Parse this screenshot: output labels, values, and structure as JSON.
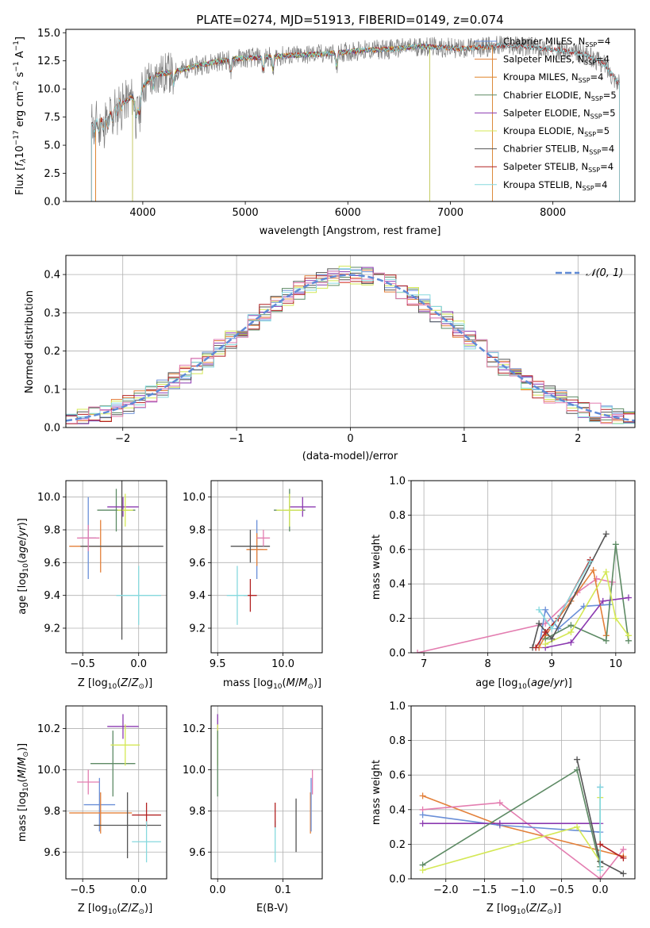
{
  "figure_title": "PLATE=0274, MJD=51913, FIBERID=0149, z=0.074",
  "colors": {
    "chabrier_miles": "#6a8fd8",
    "salpeter_miles": "#e3803a",
    "kroupa_miles": "#e0862b",
    "chabrier_elodie": "#5d8a64",
    "salpeter_elodie": "#8b39b0",
    "kroupa_elodie": "#d4e855",
    "chabrier_stelib": "#555555",
    "salpeter_stelib": "#b22222",
    "kroupa_stelib": "#86d9de",
    "pink": "#e37db0",
    "gauss": "#5f8ad6",
    "data": "#808080"
  },
  "chart_data": [
    {
      "id": "spectrum",
      "type": "line",
      "xlabel": "wavelength [Angstrom, rest frame]",
      "ylabel": "Flux [f$_\\lambda$10$^{-17}$ erg cm$^{-2}$ s$^{-1}$ A$^{-1}$]",
      "xlim": [
        3250,
        8800
      ],
      "ylim": [
        0,
        15.3
      ],
      "xticks": [
        4000,
        5000,
        6000,
        7000,
        8000
      ],
      "yticks": [
        0.0,
        2.5,
        5.0,
        7.5,
        10.0,
        12.5,
        15.0
      ],
      "ytick_labels": [
        "0.0",
        "2.5",
        "5.0",
        "7.5",
        "10.0",
        "12.5",
        "15.0"
      ],
      "grid": false,
      "legend_position": "top-right",
      "legend": [
        {
          "label": "Chabrier MILES, N",
          "sub": "SSP",
          "tail": "=4",
          "color": "chabrier_miles"
        },
        {
          "label": "Salpeter MILES, N",
          "sub": "SSP",
          "tail": "=4",
          "color": "salpeter_miles"
        },
        {
          "label": "Kroupa MILES, N",
          "sub": "SSP",
          "tail": "=4",
          "color": "kroupa_miles"
        },
        {
          "label": "Chabrier ELODIE, N",
          "sub": "SSP",
          "tail": "=5",
          "color": "chabrier_elodie"
        },
        {
          "label": "Salpeter ELODIE, N",
          "sub": "SSP",
          "tail": "=5",
          "color": "salpeter_elodie"
        },
        {
          "label": "Kroupa ELODIE, N",
          "sub": "SSP",
          "tail": "=5",
          "color": "kroupa_elodie"
        },
        {
          "label": "Chabrier STELIB, N",
          "sub": "SSP",
          "tail": "=4",
          "color": "chabrier_stelib"
        },
        {
          "label": "Salpeter STELIB, N",
          "sub": "SSP",
          "tail": "=4",
          "color": "salpeter_stelib"
        },
        {
          "label": "Kroupa STELIB, N",
          "sub": "SSP",
          "tail": "=4",
          "color": "kroupa_stelib"
        }
      ],
      "continuum": [
        [
          3500,
          6.6
        ],
        [
          3650,
          6.9
        ],
        [
          3780,
          8.6
        ],
        [
          3900,
          9.3
        ],
        [
          3950,
          8.3
        ],
        [
          4000,
          10.2
        ],
        [
          4100,
          11.2
        ],
        [
          4300,
          11.5
        ],
        [
          4500,
          12.0
        ],
        [
          4700,
          12.4
        ],
        [
          4900,
          12.7
        ],
        [
          5100,
          12.8
        ],
        [
          5300,
          12.9
        ],
        [
          5500,
          13.0
        ],
        [
          5700,
          13.1
        ],
        [
          5900,
          13.2
        ],
        [
          6100,
          13.4
        ],
        [
          6300,
          13.5
        ],
        [
          6500,
          13.6
        ],
        [
          6700,
          13.8
        ],
        [
          6900,
          13.7
        ],
        [
          7100,
          13.6
        ],
        [
          7300,
          13.7
        ],
        [
          7500,
          13.9
        ],
        [
          7700,
          13.8
        ],
        [
          7900,
          13.6
        ],
        [
          8100,
          13.4
        ],
        [
          8300,
          13.1
        ],
        [
          8500,
          12.2
        ],
        [
          8650,
          10.4
        ]
      ]
    },
    {
      "id": "residuals",
      "type": "histogram",
      "xlabel": "(data-model)/error",
      "ylabel": "Normed distribution",
      "xlim": [
        -2.5,
        2.5
      ],
      "ylim": [
        0,
        0.45
      ],
      "xticks": [
        -2,
        -1,
        0,
        1,
        2
      ],
      "xtick_labels": [
        "−2",
        "−1",
        "0",
        "1",
        "2"
      ],
      "yticks": [
        0.0,
        0.1,
        0.2,
        0.3,
        0.4
      ],
      "ytick_labels": [
        "0.0",
        "0.1",
        "0.2",
        "0.3",
        "0.4"
      ],
      "grid": true,
      "legend_position": "top-right",
      "legend": [
        {
          "label": "𝒩(0, 1)",
          "color": "gauss"
        }
      ],
      "bin_edges_start": -2.5,
      "bin_width": 0.1
    },
    {
      "id": "age_vs_Z",
      "type": "scatter",
      "xlabel": "Z [log₁₀(Z/Z☉)]",
      "ylabel": "age  [log₁₀(age/yr)]",
      "xlim": [
        -0.65,
        0.25
      ],
      "ylim": [
        9.05,
        10.1
      ],
      "xticks": [
        -0.5,
        0.0
      ],
      "xtick_labels": [
        "−0.5",
        "0.0"
      ],
      "yticks": [
        9.2,
        9.4,
        9.6,
        9.8,
        10.0
      ],
      "ytick_labels": [
        "9.2",
        "9.4",
        "9.6",
        "9.8",
        "10.0"
      ],
      "grid": true,
      "points": [
        {
          "x": -0.45,
          "y": 9.75,
          "xerr": 0.07,
          "yerr": 0.25,
          "color": "chabrier_miles"
        },
        {
          "x": -0.34,
          "y": 9.7,
          "xerr": 0.28,
          "yerr": 0.16,
          "color": "salpeter_miles"
        },
        {
          "x": -0.2,
          "y": 9.92,
          "xerr": 0.17,
          "yerr": 0.13,
          "color": "chabrier_elodie"
        },
        {
          "x": -0.14,
          "y": 9.94,
          "xerr": 0.14,
          "yerr": 0.06,
          "color": "salpeter_elodie"
        },
        {
          "x": -0.12,
          "y": 9.92,
          "xerr": 0.07,
          "yerr": 0.1,
          "color": "kroupa_elodie"
        },
        {
          "x": -0.15,
          "y": 9.7,
          "xerr": 0.37,
          "yerr": 0.57,
          "color": "chabrier_stelib"
        },
        {
          "x": -0.45,
          "y": 9.75,
          "xerr": 0.1,
          "yerr": 0.08,
          "color": "pink"
        },
        {
          "x": 0.0,
          "y": 9.4,
          "xerr": 0.2,
          "yerr": 0.18,
          "color": "kroupa_stelib"
        }
      ]
    },
    {
      "id": "age_vs_mass",
      "type": "scatter",
      "xlabel": "mass [log₁₀(M/M☉)]",
      "xlim": [
        9.45,
        10.3
      ],
      "ylim": [
        9.05,
        10.1
      ],
      "xticks": [
        9.5,
        10.0
      ],
      "xtick_labels": [
        "9.5",
        "10.0"
      ],
      "yticks": [
        9.2,
        9.4,
        9.6,
        9.8,
        10.0
      ],
      "ytick_labels": [
        "9.2",
        "9.4",
        "9.6",
        "9.8",
        "10.0"
      ],
      "grid": true,
      "points": [
        {
          "x": 9.8,
          "y": 9.68,
          "xerr": 0.05,
          "yerr": 0.18,
          "color": "chabrier_miles"
        },
        {
          "x": 9.8,
          "y": 9.68,
          "xerr": 0.08,
          "yerr": 0.1,
          "color": "salpeter_miles"
        },
        {
          "x": 10.05,
          "y": 9.92,
          "xerr": 0.12,
          "yerr": 0.13,
          "color": "chabrier_elodie"
        },
        {
          "x": 10.15,
          "y": 9.94,
          "xerr": 0.1,
          "yerr": 0.06,
          "color": "salpeter_elodie"
        },
        {
          "x": 10.05,
          "y": 9.92,
          "xerr": 0.1,
          "yerr": 0.1,
          "color": "kroupa_elodie"
        },
        {
          "x": 9.75,
          "y": 9.7,
          "xerr": 0.15,
          "yerr": 0.1,
          "color": "chabrier_stelib"
        },
        {
          "x": 9.75,
          "y": 9.4,
          "xerr": 0.05,
          "yerr": 0.1,
          "color": "salpeter_stelib"
        },
        {
          "x": 9.65,
          "y": 9.4,
          "xerr": 0.08,
          "yerr": 0.18,
          "color": "kroupa_stelib"
        },
        {
          "x": 9.85,
          "y": 9.75,
          "xerr": 0.05,
          "yerr": 0.05,
          "color": "pink"
        }
      ]
    },
    {
      "id": "massweight_vs_age",
      "type": "line",
      "xlabel": "age  [log₁₀(age/yr)]",
      "ylabel": "mass weight",
      "xlim": [
        6.8,
        10.3
      ],
      "ylim": [
        0,
        1.0
      ],
      "xticks": [
        7,
        8,
        9,
        10
      ],
      "xtick_labels": [
        "7",
        "8",
        "9",
        "10"
      ],
      "yticks": [
        0.0,
        0.2,
        0.4,
        0.6,
        0.8,
        1.0
      ],
      "ytick_labels": [
        "0.0",
        "0.2",
        "0.4",
        "0.6",
        "0.8",
        "1.0"
      ],
      "grid": true,
      "series": [
        {
          "color": "pink",
          "x": [
            6.9,
            8.9,
            9.4,
            9.7,
            9.95
          ],
          "y": [
            0.0,
            0.17,
            0.35,
            0.43,
            0.41
          ]
        },
        {
          "color": "chabrier_miles",
          "x": [
            8.8,
            8.9,
            9.1,
            9.5,
            9.9
          ],
          "y": [
            0.03,
            0.25,
            0.14,
            0.27,
            0.28
          ]
        },
        {
          "color": "salpeter_miles",
          "x": [
            8.8,
            8.9,
            9.3,
            9.65,
            9.85
          ],
          "y": [
            0.03,
            0.1,
            0.3,
            0.48,
            0.1
          ]
        },
        {
          "color": "chabrier_elodie",
          "x": [
            8.9,
            9.3,
            9.85,
            10.0,
            10.2
          ],
          "y": [
            0.08,
            0.16,
            0.07,
            0.63,
            0.07
          ]
        },
        {
          "color": "salpeter_elodie",
          "x": [
            8.9,
            9.3,
            9.8,
            10.2
          ],
          "y": [
            0.03,
            0.06,
            0.3,
            0.32
          ]
        },
        {
          "color": "kroupa_elodie",
          "x": [
            8.9,
            9.3,
            9.85,
            10.0,
            10.2
          ],
          "y": [
            0.05,
            0.12,
            0.47,
            0.2,
            0.1
          ]
        },
        {
          "color": "chabrier_stelib",
          "x": [
            8.7,
            8.8,
            9.0,
            9.85
          ],
          "y": [
            0.03,
            0.17,
            0.08,
            0.69
          ]
        },
        {
          "color": "salpeter_stelib",
          "x": [
            8.75,
            8.9,
            9.1,
            9.6
          ],
          "y": [
            0.03,
            0.12,
            0.2,
            0.54
          ]
        },
        {
          "color": "kroupa_stelib",
          "x": [
            8.8,
            9.0,
            9.6
          ],
          "y": [
            0.25,
            0.14,
            0.53
          ]
        }
      ]
    },
    {
      "id": "mass_vs_Z",
      "type": "scatter",
      "xlabel": "Z [log₁₀(Z/Z☉)]",
      "ylabel": "mass [log₁₀(M/M☉)]",
      "xlim": [
        -0.65,
        0.25
      ],
      "ylim": [
        9.47,
        10.31
      ],
      "xticks": [
        -0.5,
        0.0
      ],
      "xtick_labels": [
        "−0.5",
        "0.0"
      ],
      "yticks": [
        9.6,
        9.8,
        10.0,
        10.2
      ],
      "ytick_labels": [
        "9.6",
        "9.8",
        "10.0",
        "10.2"
      ],
      "grid": true,
      "points": [
        {
          "x": -0.35,
          "y": 9.83,
          "xerr": 0.14,
          "yerr": 0.13,
          "color": "chabrier_miles"
        },
        {
          "x": -0.34,
          "y": 9.79,
          "xerr": 0.28,
          "yerr": 0.1,
          "color": "salpeter_miles"
        },
        {
          "x": -0.23,
          "y": 10.03,
          "xerr": 0.2,
          "yerr": 0.16,
          "color": "chabrier_elodie"
        },
        {
          "x": -0.14,
          "y": 10.21,
          "xerr": 0.14,
          "yerr": 0.06,
          "color": "salpeter_elodie"
        },
        {
          "x": -0.12,
          "y": 10.12,
          "xerr": 0.13,
          "yerr": 0.1,
          "color": "kroupa_elodie"
        },
        {
          "x": -0.1,
          "y": 9.73,
          "xerr": 0.3,
          "yerr": 0.16,
          "color": "chabrier_stelib"
        },
        {
          "x": 0.07,
          "y": 9.78,
          "xerr": 0.13,
          "yerr": 0.06,
          "color": "salpeter_stelib"
        },
        {
          "x": 0.07,
          "y": 9.65,
          "xerr": 0.13,
          "yerr": 0.1,
          "color": "kroupa_stelib"
        },
        {
          "x": -0.45,
          "y": 9.94,
          "xerr": 0.1,
          "yerr": 0.06,
          "color": "pink"
        }
      ]
    },
    {
      "id": "mass_vs_ebv",
      "type": "scatter",
      "xlabel": "E(B-V)",
      "xlim": [
        -0.01,
        0.16
      ],
      "ylim": [
        9.47,
        10.31
      ],
      "xticks": [
        0.0,
        0.1
      ],
      "xtick_labels": [
        "0.0",
        "0.1"
      ],
      "yticks": [
        9.6,
        9.8,
        10.0,
        10.2
      ],
      "ytick_labels": [
        "9.6",
        "9.8",
        "10.0",
        "10.2"
      ],
      "grid": true,
      "points": [
        {
          "x": 0.0,
          "y": 10.21,
          "xerr": 0,
          "yerr": 0.06,
          "color": "salpeter_elodie"
        },
        {
          "x": 0.0,
          "y": 10.12,
          "xerr": 0,
          "yerr": 0.1,
          "color": "kroupa_elodie"
        },
        {
          "x": 0.0,
          "y": 10.03,
          "xerr": 0,
          "yerr": 0.16,
          "color": "chabrier_elodie"
        },
        {
          "x": 0.088,
          "y": 9.65,
          "xerr": 0,
          "yerr": 0.1,
          "color": "kroupa_stelib"
        },
        {
          "x": 0.088,
          "y": 9.78,
          "xerr": 0,
          "yerr": 0.06,
          "color": "salpeter_stelib"
        },
        {
          "x": 0.12,
          "y": 9.73,
          "xerr": 0,
          "yerr": 0.13,
          "color": "chabrier_stelib"
        },
        {
          "x": 0.142,
          "y": 9.79,
          "xerr": 0,
          "yerr": 0.1,
          "color": "salpeter_miles"
        },
        {
          "x": 0.143,
          "y": 9.83,
          "xerr": 0,
          "yerr": 0.13,
          "color": "chabrier_miles"
        },
        {
          "x": 0.145,
          "y": 9.94,
          "xerr": 0,
          "yerr": 0.06,
          "color": "pink"
        }
      ]
    },
    {
      "id": "massweight_vs_Z",
      "type": "line",
      "xlabel": "Z [log₁₀(Z/Z☉)]",
      "ylabel": "mass weight",
      "xlim": [
        -2.45,
        0.45
      ],
      "ylim": [
        0,
        1.0
      ],
      "xticks": [
        -2.0,
        -1.5,
        -1.0,
        -0.5,
        0.0
      ],
      "xtick_labels": [
        "−2.0",
        "−1.5",
        "−1.0",
        "−0.5",
        "0.0"
      ],
      "yticks": [
        0.0,
        0.2,
        0.4,
        0.6,
        0.8,
        1.0
      ],
      "ytick_labels": [
        "0.0",
        "0.2",
        "0.4",
        "0.6",
        "0.8",
        "1.0"
      ],
      "grid": true,
      "series": [
        {
          "color": "salpeter_miles",
          "x": [
            -2.3,
            -1.3,
            0.3
          ],
          "y": [
            0.48,
            0.31,
            0.13
          ]
        },
        {
          "color": "pink",
          "x": [
            -2.3,
            -1.3,
            0.0,
            0.3
          ],
          "y": [
            0.4,
            0.44,
            0.0,
            0.17
          ]
        },
        {
          "color": "chabrier_miles",
          "x": [
            -2.3,
            -1.3,
            0.0,
            0.0
          ],
          "y": [
            0.37,
            0.31,
            0.27,
            0.53
          ]
        },
        {
          "color": "salpeter_elodie",
          "x": [
            -2.3,
            -1.3,
            0.0
          ],
          "y": [
            0.32,
            0.32,
            0.32
          ]
        },
        {
          "color": "chabrier_elodie",
          "x": [
            -2.3,
            -0.3,
            0.0
          ],
          "y": [
            0.08,
            0.63,
            0.07
          ]
        },
        {
          "color": "kroupa_elodie",
          "x": [
            -2.3,
            -0.3,
            0.0,
            0.0
          ],
          "y": [
            0.05,
            0.3,
            0.1,
            0.47
          ]
        },
        {
          "color": "chabrier_stelib",
          "x": [
            -0.3,
            0.0,
            0.3
          ],
          "y": [
            0.69,
            0.1,
            0.03
          ]
        },
        {
          "color": "kroupa_stelib",
          "x": [
            0.0,
            0.0
          ],
          "y": [
            0.53,
            0.05
          ]
        },
        {
          "color": "salpeter_stelib",
          "x": [
            0.0,
            0.3
          ],
          "y": [
            0.2,
            0.12
          ]
        }
      ]
    }
  ]
}
